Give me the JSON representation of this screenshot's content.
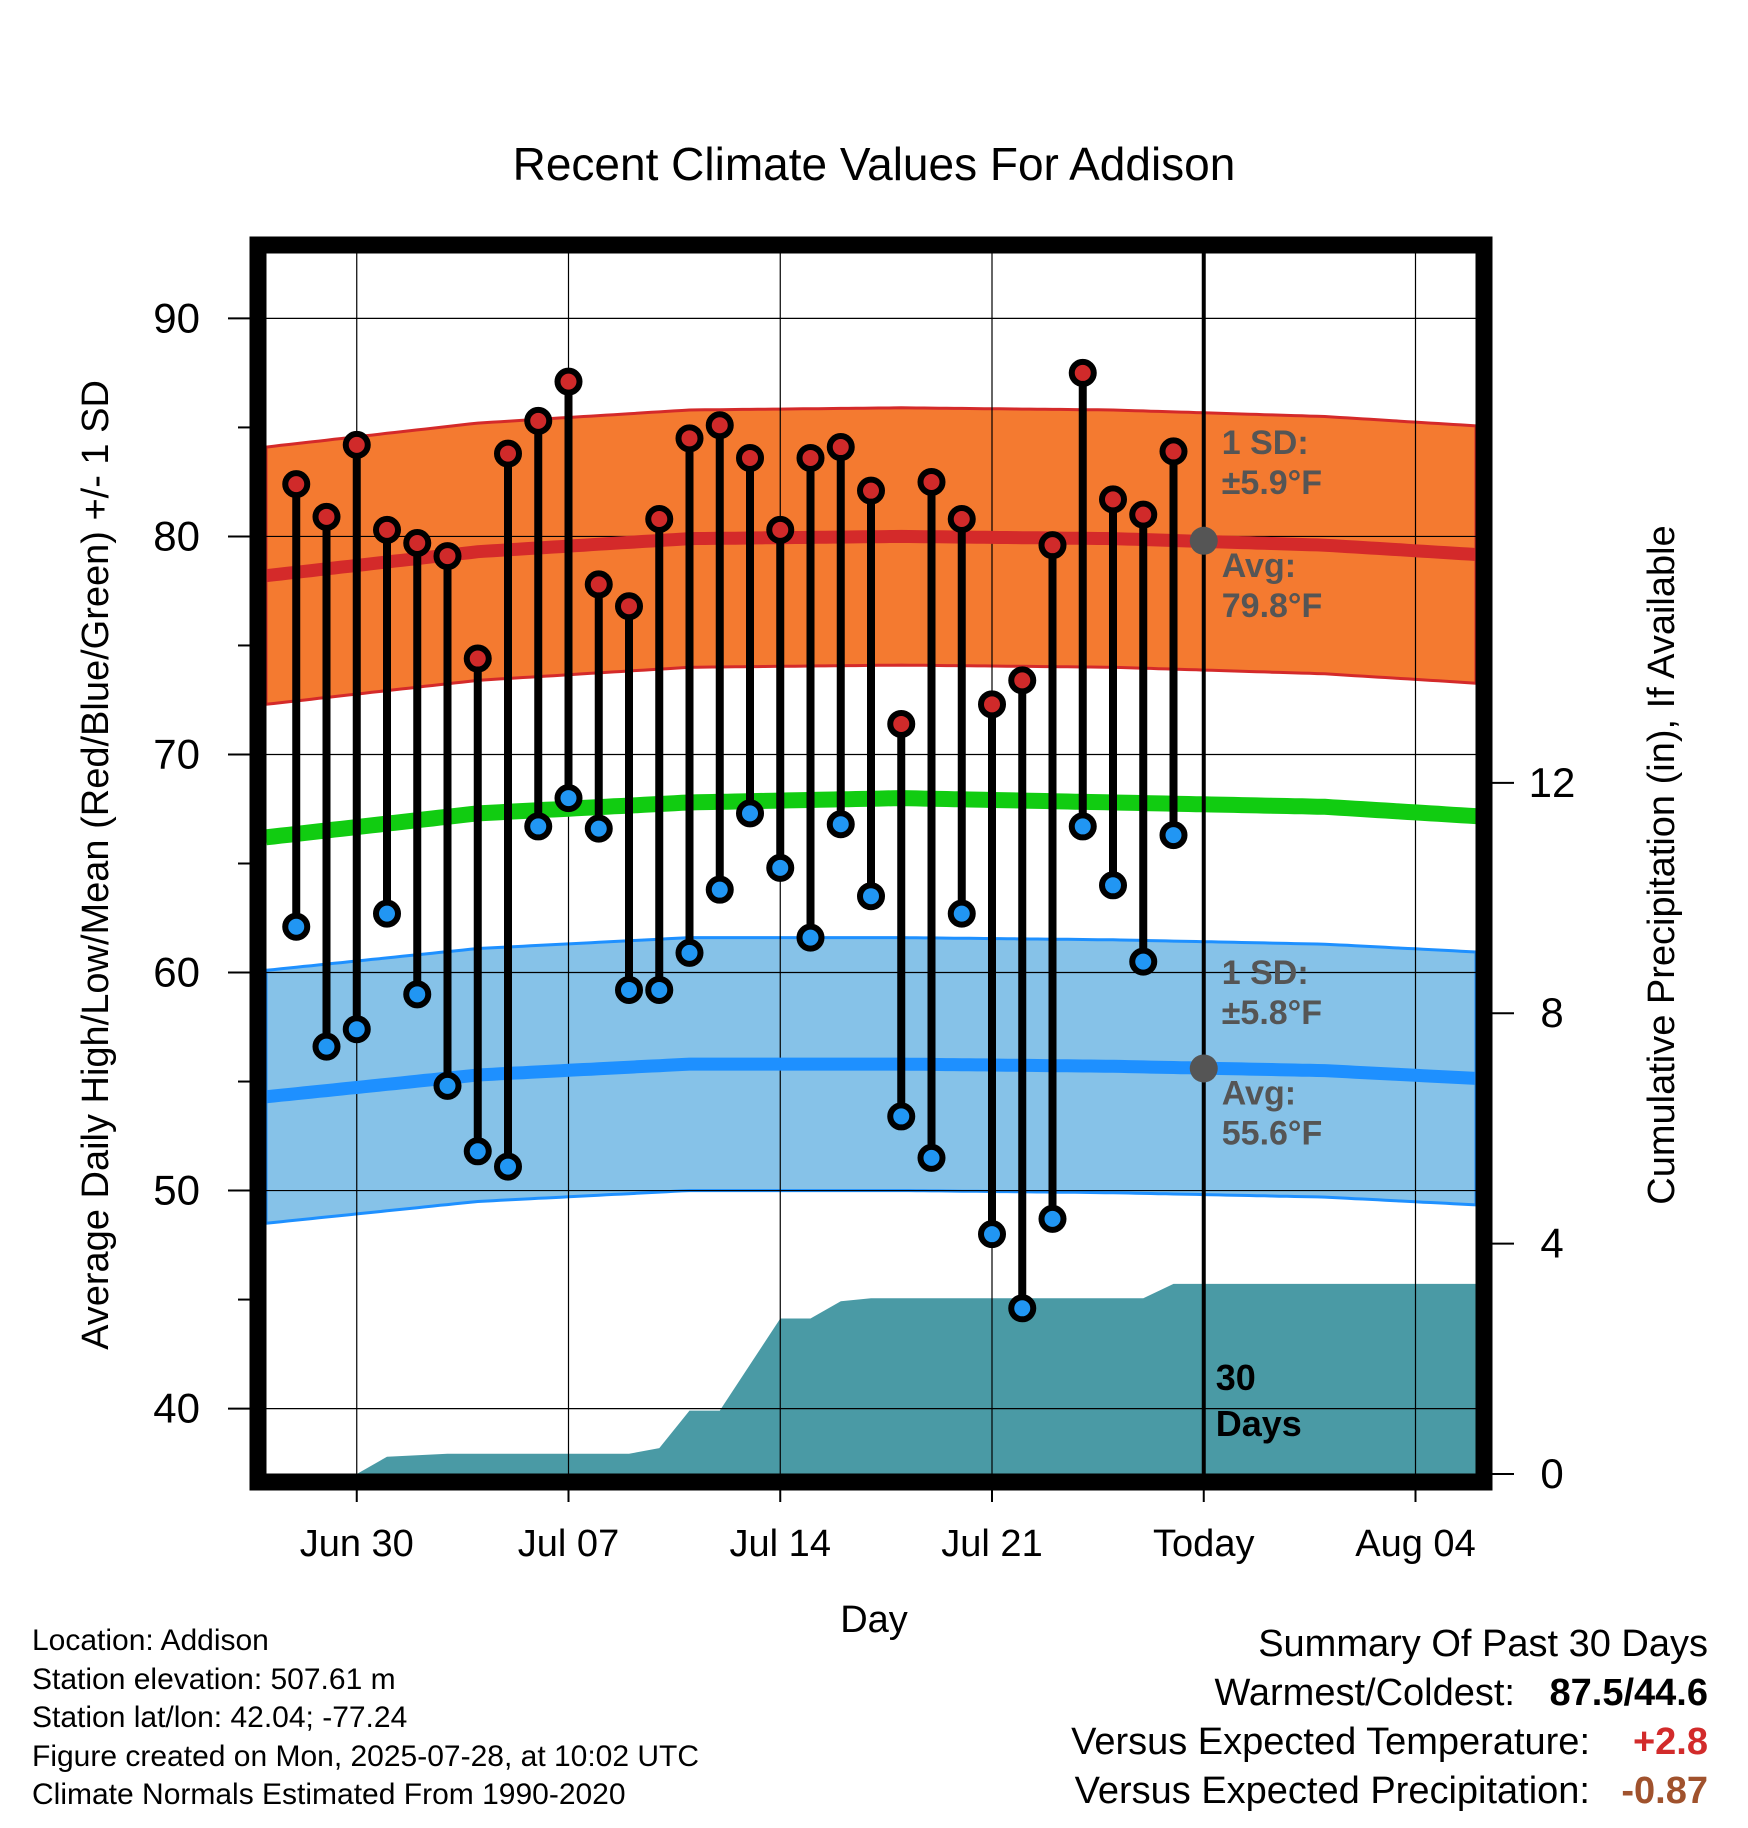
{
  "chart_data": {
    "type": "line",
    "title": "Recent Climate Values For Addison",
    "xlabel": "Day",
    "ylabel": "Average Daily High/Low/Mean (Red/Blue/Green) +/- 1 SD",
    "y2label": "Cumulative Precipitation (in), If Available",
    "ylim": [
      37,
      93
    ],
    "y2lim": [
      0,
      21.2
    ],
    "xlim": [
      "2025-06-27",
      "2025-08-06"
    ],
    "x_ticks": [
      {
        "date": "2025-06-30",
        "label": "Jun 30"
      },
      {
        "date": "2025-07-07",
        "label": "Jul 07"
      },
      {
        "date": "2025-07-14",
        "label": "Jul 14"
      },
      {
        "date": "2025-07-21",
        "label": "Jul 21"
      },
      {
        "date": "2025-07-28",
        "label": "Today"
      },
      {
        "date": "2025-08-04",
        "label": "Aug 04"
      }
    ],
    "y_ticks": [
      40,
      50,
      60,
      70,
      80,
      90
    ],
    "y2_ticks": [
      0,
      4,
      8,
      12
    ],
    "grid": true,
    "today": "2025-07-28",
    "days_label": "30\nDays",
    "normals": {
      "dates": [
        "2025-06-27",
        "2025-07-04",
        "2025-07-11",
        "2025-07-18",
        "2025-07-25",
        "2025-08-01",
        "2025-08-08"
      ],
      "high_avg": [
        78.2,
        79.3,
        79.9,
        80.0,
        79.9,
        79.6,
        79.0
      ],
      "high_sd": 5.9,
      "low_avg": [
        54.3,
        55.3,
        55.8,
        55.8,
        55.7,
        55.5,
        55.0
      ],
      "low_sd": 5.8,
      "mean_avg": [
        66.2,
        67.3,
        67.8,
        68.0,
        67.8,
        67.6,
        67.0
      ]
    },
    "series": [
      {
        "name": "High",
        "x": [
          "2025-06-28",
          "2025-06-29",
          "2025-06-30",
          "2025-07-01",
          "2025-07-02",
          "2025-07-03",
          "2025-07-04",
          "2025-07-05",
          "2025-07-06",
          "2025-07-07",
          "2025-07-08",
          "2025-07-09",
          "2025-07-10",
          "2025-07-11",
          "2025-07-12",
          "2025-07-13",
          "2025-07-14",
          "2025-07-15",
          "2025-07-16",
          "2025-07-17",
          "2025-07-18",
          "2025-07-19",
          "2025-07-20",
          "2025-07-21",
          "2025-07-22",
          "2025-07-23",
          "2025-07-24",
          "2025-07-25",
          "2025-07-26",
          "2025-07-27"
        ],
        "values": [
          82.4,
          80.9,
          84.2,
          80.3,
          79.7,
          79.1,
          74.4,
          83.8,
          85.3,
          87.1,
          77.8,
          76.8,
          80.8,
          84.5,
          85.1,
          83.6,
          80.3,
          83.6,
          84.1,
          82.1,
          71.4,
          82.5,
          80.8,
          72.3,
          73.4,
          79.6,
          87.5,
          81.7,
          81.0,
          83.9
        ]
      },
      {
        "name": "Low",
        "x": [
          "2025-06-28",
          "2025-06-29",
          "2025-06-30",
          "2025-07-01",
          "2025-07-02",
          "2025-07-03",
          "2025-07-04",
          "2025-07-05",
          "2025-07-06",
          "2025-07-07",
          "2025-07-08",
          "2025-07-09",
          "2025-07-10",
          "2025-07-11",
          "2025-07-12",
          "2025-07-13",
          "2025-07-14",
          "2025-07-15",
          "2025-07-16",
          "2025-07-17",
          "2025-07-18",
          "2025-07-19",
          "2025-07-20",
          "2025-07-21",
          "2025-07-22",
          "2025-07-23",
          "2025-07-24",
          "2025-07-25",
          "2025-07-26",
          "2025-07-27"
        ],
        "values": [
          62.1,
          56.6,
          57.4,
          62.7,
          59.0,
          54.8,
          51.8,
          51.1,
          66.7,
          68.0,
          66.6,
          59.2,
          59.2,
          60.9,
          63.8,
          67.3,
          64.8,
          61.6,
          66.8,
          63.5,
          53.4,
          51.5,
          62.7,
          48.0,
          44.6,
          48.7,
          66.7,
          64.0,
          60.5,
          66.3
        ]
      },
      {
        "name": "Cumulative Precipitation",
        "x": [
          "2025-06-27",
          "2025-06-30",
          "2025-07-01",
          "2025-07-03",
          "2025-07-09",
          "2025-07-10",
          "2025-07-11",
          "2025-07-12",
          "2025-07-13",
          "2025-07-14",
          "2025-07-15",
          "2025-07-16",
          "2025-07-17",
          "2025-07-26",
          "2025-07-27",
          "2025-08-06"
        ],
        "values": [
          0.0,
          0.0,
          0.3,
          0.35,
          0.35,
          0.45,
          1.1,
          1.1,
          1.9,
          2.7,
          2.7,
          3.0,
          3.05,
          3.05,
          3.3,
          3.3
        ]
      }
    ],
    "annotations": {
      "high_sd": {
        "label": "1 SD:",
        "value": "±5.9°F"
      },
      "high_avg": {
        "label": "Avg:",
        "value": "79.8°F",
        "y": 79.8
      },
      "low_sd": {
        "label": "1 SD:",
        "value": "±5.8°F"
      },
      "low_avg": {
        "label": "Avg:",
        "value": "55.6°F",
        "y": 55.6
      }
    }
  },
  "footer": {
    "location": "Location: Addison",
    "elevation": "Station elevation: 507.61 m",
    "latlon": "Station lat/lon: 42.04; -77.24",
    "created": "Figure created on Mon, 2025-07-28, at 10:02 UTC",
    "normals": "Climate Normals Estimated From 1990-2020"
  },
  "summary": {
    "title": "Summary Of Past 30 Days",
    "warmest_label": "Warmest/Coldest:",
    "warmest_value": "87.5/44.6",
    "temp_label": "Versus Expected Temperature:",
    "temp_value": "+2.8",
    "precip_label": "Versus Expected Precipitation:",
    "precip_value": "-0.87"
  },
  "colors": {
    "high_band": "#f47a30",
    "high_line": "#d42a2a",
    "low_band": "#86c2e8",
    "low_line": "#1e90ff",
    "mean_line": "#11cc11",
    "precip": "#4a9aa5",
    "high_dot": "#d02a2a",
    "low_dot": "#2196f3",
    "annotation": "#555555"
  }
}
